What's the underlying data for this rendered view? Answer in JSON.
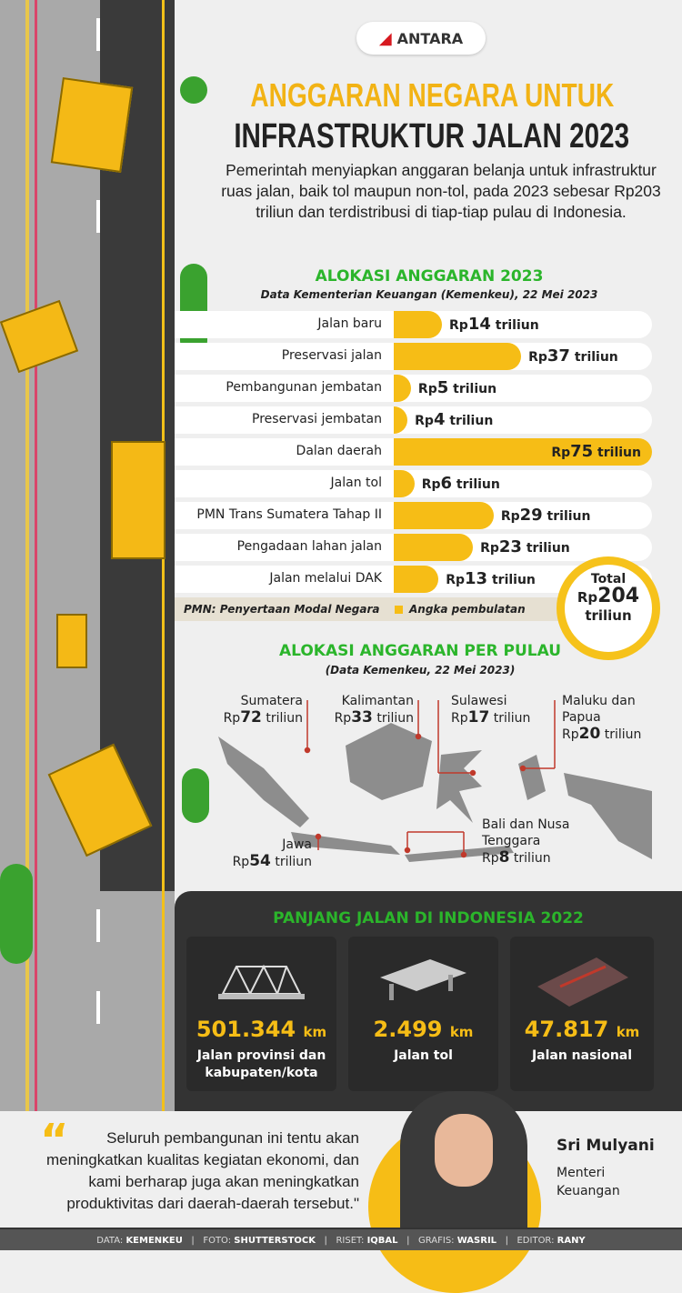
{
  "brand": "ANTARA",
  "title_line1": "ANGGARAN NEGARA UNTUK",
  "title_line2": "INFRASTRUKTUR JALAN 2023",
  "intro": "Pemerintah menyiapkan anggaran belanja untuk infrastruktur ruas jalan, baik tol maupun non-tol, pada 2023 sebesar Rp203 triliun dan terdistribusi di tiap-tiap pulau di Indonesia.",
  "colors": {
    "accent": "#f6bd16",
    "green": "#2bb52b",
    "dark": "#333333"
  },
  "chart_data": {
    "type": "bar",
    "orientation": "horizontal",
    "title": "ALOKASI ANGGARAN 2023",
    "subtitle": "Data Kementerian Keuangan (Kemenkeu), 22 Mei 2023",
    "unit_prefix": "Rp",
    "unit_suffix": "triliun",
    "categories": [
      "Jalan baru",
      "Preservasi jalan",
      "Pembangunan jembatan",
      "Preservasi jembatan",
      "Dalan daerah",
      "Jalan tol",
      "PMN Trans Sumatera Tahap II",
      "Pengadaan lahan jalan",
      "Jalan melalui DAK"
    ],
    "values": [
      14,
      37,
      5,
      4,
      75,
      6,
      29,
      23,
      13
    ],
    "xlim": [
      0,
      75
    ]
  },
  "notes": {
    "pmn": "PMN: Penyertaan Modal Negara",
    "rounding": "Angka pembulatan"
  },
  "total": {
    "label": "Total",
    "prefix": "Rp",
    "value": "204",
    "unit": "triliun"
  },
  "islands": {
    "title": "ALOKASI ANGGARAN PER PULAU",
    "subtitle": "(Data Kemenkeu, 22 Mei 2023)",
    "items": [
      {
        "name": "Sumatera",
        "value": "72"
      },
      {
        "name": "Kalimantan",
        "value": "33"
      },
      {
        "name": "Sulawesi",
        "value": "17"
      },
      {
        "name": "Maluku dan Papua",
        "value": "20"
      },
      {
        "name": "Jawa",
        "value": "54"
      },
      {
        "name": "Bali dan Nusa Tenggara",
        "value": "8"
      }
    ],
    "prefix": "Rp",
    "unit": "triliun"
  },
  "roads": {
    "title": "PANJANG JALAN DI INDONESIA 2022",
    "items": [
      {
        "value": "501.344",
        "unit": "km",
        "label": "Jalan provinsi dan kabupaten/kota",
        "icon": "bridge-truss-icon"
      },
      {
        "value": "2.499",
        "unit": "km",
        "label": "Jalan tol",
        "icon": "toll-road-icon"
      },
      {
        "value": "47.817",
        "unit": "km",
        "label": "Jalan nasional",
        "icon": "national-road-icon"
      }
    ]
  },
  "quote": {
    "text": "Seluruh pembangunan ini tentu akan meningkatkan kualitas kegiatan ekonomi, dan kami berharap juga akan meningkatkan produktivitas dari daerah-daerah tersebut.\"",
    "mark": "“",
    "name": "Sri Mulyani",
    "role": "Menteri Keuangan"
  },
  "credits": [
    {
      "k": "DATA:",
      "v": "KEMENKEU"
    },
    {
      "k": "FOTO:",
      "v": "SHUTTERSTOCK"
    },
    {
      "k": "RISET:",
      "v": "IQBAL"
    },
    {
      "k": "GRAFIS:",
      "v": "WASRIL"
    },
    {
      "k": "EDITOR:",
      "v": "RANY"
    }
  ]
}
